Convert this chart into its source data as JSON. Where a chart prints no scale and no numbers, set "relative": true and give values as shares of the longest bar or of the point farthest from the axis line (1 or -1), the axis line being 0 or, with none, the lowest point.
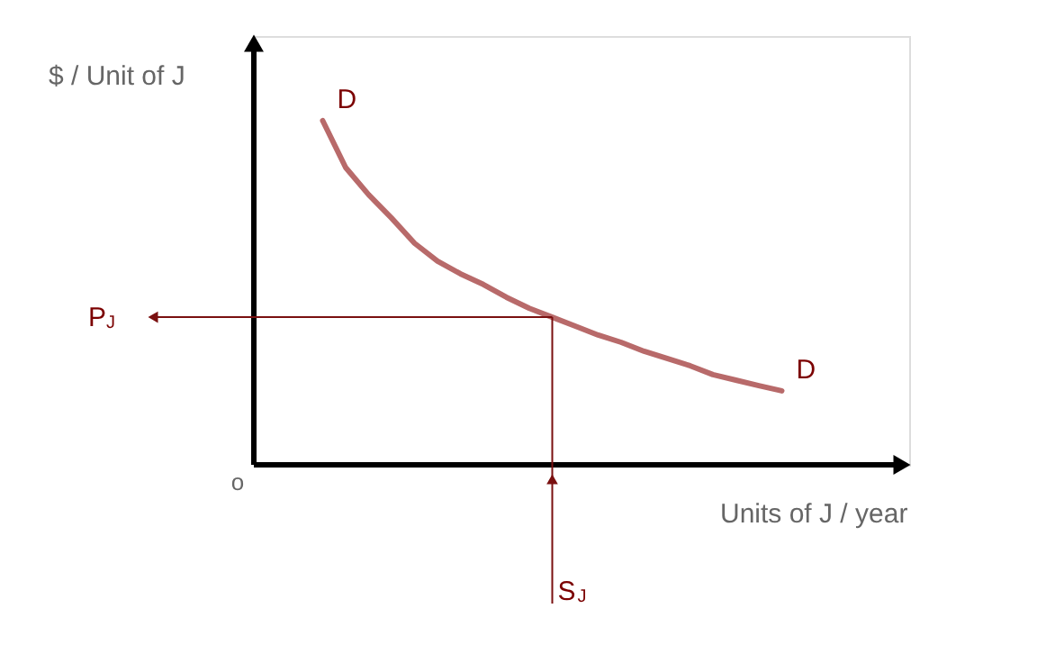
{
  "chart_data": {
    "type": "line",
    "relative": true,
    "xlabel": "Units of J / year",
    "ylabel": "$ / Unit of J",
    "categories": [
      null,
      null,
      null,
      null,
      null,
      null,
      null,
      null,
      null,
      null,
      null,
      null,
      null,
      null,
      null,
      null,
      null,
      null,
      null,
      null,
      null,
      null,
      null,
      null,
      null,
      null,
      null,
      null,
      null
    ],
    "series": [
      {
        "color": "#b86a6a",
        "values": [
          null,
          null,
          null,
          1,
          0.864,
          0.785,
          0.717,
          0.644,
          0.592,
          0.555,
          0.524,
          0.487,
          0.455,
          0.429,
          0.403,
          0.377,
          0.356,
          0.33,
          0.309,
          0.288,
          0.262,
          0.246,
          0.23,
          0.215,
          null,
          null,
          null,
          null,
          null
        ]
      }
    ],
    "ref_lines": [
      {
        "axis": "y",
        "value": 0.429,
        "label": "P$_{J}$",
        "color": "#7a1010"
      }
    ],
    "annotations": [
      "D",
      "D",
      "o",
      "S$_{J}$"
    ],
    "grid": false,
    "marker": "none",
    "line_style": "solid"
  }
}
